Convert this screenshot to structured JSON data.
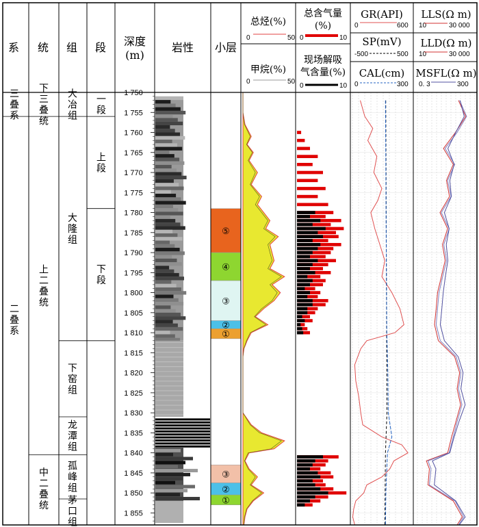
{
  "headers": {
    "system": "系",
    "series": "统",
    "formation": "组",
    "member": "段",
    "depth_line1": "深度",
    "depth_line2": "(m)",
    "lithology": "岩性",
    "sublayer": "小层",
    "total_hc_title": "总烃(%)",
    "total_hc_scale_min": "0",
    "total_hc_scale_max": "50",
    "methane_title": "甲烷(%)",
    "methane_scale_min": "0",
    "methane_scale_max": "50",
    "total_gas_line1": "总含气量",
    "total_gas_line2": "(%)",
    "total_gas_scale_min": "0",
    "total_gas_scale_max": "10",
    "desorb_line1": "现场解吸",
    "desorb_line2": "气含量(%)",
    "desorb_scale_min": "0",
    "desorb_scale_max": "10",
    "gr_title": "GR(API)",
    "gr_scale_min": "0",
    "gr_scale_max": "600",
    "sp_title": "SP(mV)",
    "sp_scale_min": "-500",
    "sp_scale_max": "500",
    "cal_title": "CAL(cm)",
    "cal_scale_min": "0",
    "cal_scale_max": "300",
    "lls_title": "LLS(Ω m)",
    "lls_scale_min": "10",
    "lls_scale_max": "30 000",
    "lld_title": "LLD(Ω m)",
    "lld_scale_min": "10",
    "lld_scale_max": "30 000",
    "msfl_title": "MSFL(Ω m)",
    "msfl_scale_min": "0. 3",
    "msfl_scale_max": "300"
  },
  "colors": {
    "gr": "#e05050",
    "sp": "#000000",
    "cal": "#2060c0",
    "lls": "#d03030",
    "lld": "#8080c0",
    "msfl": "#5050a0",
    "total_hc_fill": "#e8e830",
    "total_hc_line": "#e04040",
    "gas_bar": "#e00000",
    "desorb_bar": "#000000",
    "sub5": "#e8641e",
    "sub4": "#8ed630",
    "sub3": "#dff5f2",
    "sub2": "#4cc0e8",
    "sub1": "#eca030",
    "lower3": "#f2c0a8",
    "lower2": "#4cc0e8",
    "lower1": "#8ed630"
  },
  "stratigraphy": {
    "systems": [
      {
        "label": "三叠系",
        "top": 1750,
        "bottom": 1756
      },
      {
        "label": "二叠系",
        "top": 1756,
        "bottom": 1857.5
      }
    ],
    "series": [
      {
        "label": "下三叠统",
        "top": 1750,
        "bottom": 1756
      },
      {
        "label": "上二叠统",
        "top": 1756,
        "bottom": 1840.5
      },
      {
        "label": "中二叠统",
        "top": 1840.5,
        "bottom": 1857.5
      }
    ],
    "formations": [
      {
        "label": "大冶组",
        "top": 1750,
        "bottom": 1756
      },
      {
        "label": "大隆组",
        "top": 1756,
        "bottom": 1812
      },
      {
        "label": "下窑组",
        "top": 1812,
        "bottom": 1831
      },
      {
        "label": "龙潭组",
        "top": 1831,
        "bottom": 1840.5
      },
      {
        "label": "孤峰组",
        "top": 1840.5,
        "bottom": 1851.5
      },
      {
        "label": "茅口组",
        "top": 1851.5,
        "bottom": 1857.5
      }
    ],
    "members": [
      {
        "label": "一段",
        "top": 1750,
        "bottom": 1756
      },
      {
        "label": "上段",
        "top": 1756,
        "bottom": 1779
      },
      {
        "label": "下段",
        "top": 1779,
        "bottom": 1812
      }
    ],
    "sublayers": [
      {
        "label": "⑤",
        "top": 1779,
        "bottom": 1790,
        "color": "#e8641e"
      },
      {
        "label": "④",
        "top": 1790,
        "bottom": 1797,
        "color": "#8ed630"
      },
      {
        "label": "③",
        "top": 1797,
        "bottom": 1807,
        "color": "#dff5f2"
      },
      {
        "label": "②",
        "top": 1807,
        "bottom": 1809,
        "color": "#4cc0e8"
      },
      {
        "label": "①",
        "top": 1809,
        "bottom": 1811.5,
        "color": "#eca030"
      },
      {
        "label": "③",
        "top": 1843,
        "bottom": 1847.5,
        "color": "#f2c0a8"
      },
      {
        "label": "②",
        "top": 1847.5,
        "bottom": 1850.5,
        "color": "#4cc0e8"
      },
      {
        "label": "①",
        "top": 1850.5,
        "bottom": 1853,
        "color": "#8ed630"
      }
    ]
  },
  "chart_data": {
    "type": "line",
    "depth_range": [
      1750,
      1858
    ],
    "depth_ticks": [
      1750,
      1755,
      1760,
      1765,
      1770,
      1775,
      1780,
      1785,
      1790,
      1795,
      1800,
      1805,
      1810,
      1815,
      1820,
      1825,
      1830,
      1835,
      1840,
      1845,
      1850,
      1855
    ],
    "total_hydrocarbon": {
      "depth": [
        1750,
        1755,
        1758,
        1761,
        1763,
        1765,
        1767,
        1770,
        1773,
        1776,
        1778,
        1780,
        1782,
        1784,
        1786,
        1788,
        1790,
        1792,
        1794,
        1796,
        1798,
        1800,
        1802,
        1804,
        1806,
        1808,
        1810,
        1812,
        1814,
        1816,
        1820,
        1825,
        1830,
        1833,
        1835,
        1837,
        1839,
        1840,
        1842,
        1844,
        1846,
        1848,
        1850,
        1852,
        1854,
        1856,
        1858
      ],
      "values": [
        0,
        0,
        2,
        8,
        4,
        10,
        6,
        14,
        8,
        18,
        14,
        20,
        26,
        22,
        34,
        26,
        28,
        30,
        26,
        40,
        28,
        36,
        30,
        20,
        12,
        24,
        8,
        4,
        1,
        0,
        0,
        0,
        0,
        8,
        18,
        40,
        30,
        6,
        2,
        6,
        14,
        8,
        20,
        10,
        4,
        2,
        1
      ]
    },
    "methane": {
      "depth": [
        1750,
        1755,
        1758,
        1761,
        1763,
        1765,
        1767,
        1770,
        1773,
        1776,
        1778,
        1780,
        1782,
        1784,
        1786,
        1788,
        1790,
        1792,
        1794,
        1796,
        1798,
        1800,
        1802,
        1804,
        1806,
        1808,
        1810,
        1812,
        1814,
        1816,
        1820,
        1825,
        1830,
        1833,
        1835,
        1837,
        1839,
        1840,
        1842,
        1844,
        1846,
        1848,
        1850,
        1852,
        1854,
        1856,
        1858
      ],
      "values": [
        0,
        0,
        1.5,
        7,
        3.5,
        9,
        5,
        12,
        7,
        16,
        12,
        18,
        24,
        20,
        31,
        24,
        26,
        28,
        24,
        37,
        26,
        33,
        28,
        18,
        11,
        22,
        7,
        3.5,
        0.8,
        0,
        0,
        0,
        0,
        7,
        16,
        37,
        27,
        5,
        1.5,
        5,
        12,
        7,
        18,
        9,
        3.5,
        1.5,
        0.8
      ]
    },
    "total_gas_content": {
      "depth": [
        1760,
        1762,
        1764,
        1766,
        1768,
        1770,
        1772,
        1774,
        1776,
        1778,
        1780,
        1781,
        1782,
        1783,
        1784,
        1785,
        1786,
        1787,
        1788,
        1789,
        1790,
        1791,
        1792,
        1793,
        1794,
        1795,
        1796,
        1797,
        1798,
        1799,
        1800,
        1801,
        1802,
        1803,
        1804,
        1805,
        1806,
        1807,
        1808,
        1809,
        1810,
        1841,
        1842,
        1843,
        1844,
        1845,
        1846,
        1847,
        1848,
        1849,
        1850,
        1851,
        1852,
        1853
      ],
      "values": [
        0.8,
        1.5,
        2.5,
        4,
        3,
        5,
        4,
        5.5,
        4,
        6,
        7,
        5.5,
        8.5,
        6.5,
        9,
        7.5,
        8,
        6,
        8.5,
        7,
        6.5,
        5.5,
        7.5,
        6,
        5,
        6.5,
        4.5,
        5.5,
        5,
        3.5,
        4.5,
        4,
        6,
        5.5,
        4,
        3.5,
        2.5,
        3,
        1.5,
        2,
        2.5,
        8,
        6,
        5.5,
        4.5,
        6.5,
        7,
        5,
        5.5,
        7,
        9.5,
        6,
        4.5,
        3
      ]
    },
    "desorbed_gas_content": {
      "depth": [
        1780,
        1781,
        1782,
        1783,
        1784,
        1785,
        1786,
        1787,
        1788,
        1789,
        1790,
        1791,
        1792,
        1793,
        1794,
        1795,
        1796,
        1797,
        1798,
        1799,
        1800,
        1801,
        1802,
        1803,
        1804,
        1805,
        1806,
        1807,
        1808,
        1809,
        1810,
        1841,
        1842,
        1843,
        1844,
        1845,
        1846,
        1847,
        1848,
        1849,
        1850,
        1851,
        1852,
        1853
      ],
      "values": [
        3.5,
        2.5,
        4.5,
        3,
        5.5,
        4,
        5,
        3,
        4.5,
        4,
        3,
        2.5,
        4,
        3,
        2.5,
        3.5,
        2,
        3,
        2.5,
        1.5,
        2.5,
        2,
        3,
        3,
        2,
        2,
        1,
        1.5,
        0.7,
        1,
        1.2,
        5,
        3.5,
        3,
        2.5,
        4,
        4.5,
        3,
        3.5,
        4.5,
        6,
        3.5,
        2.5,
        1.5
      ]
    },
    "gr": {
      "depth": [
        1752,
        1756,
        1759,
        1762,
        1766,
        1770,
        1774,
        1777,
        1780,
        1784,
        1788,
        1792,
        1796,
        1800,
        1804,
        1808,
        1810,
        1812,
        1814,
        1818,
        1822,
        1826,
        1830,
        1833,
        1836,
        1838,
        1840,
        1842,
        1844,
        1846,
        1848,
        1850,
        1852,
        1854,
        1856,
        1858
      ],
      "values": [
        85,
        130,
        210,
        160,
        250,
        220,
        300,
        260,
        190,
        230,
        280,
        330,
        300,
        400,
        480,
        520,
        430,
        150,
        90,
        30,
        40,
        70,
        90,
        110,
        300,
        500,
        560,
        420,
        380,
        300,
        150,
        120,
        40,
        20,
        10,
        30
      ]
    },
    "sp": {
      "depth": [
        1752,
        1770,
        1790,
        1810,
        1830,
        1840,
        1850,
        1858
      ],
      "values": [
        65,
        70,
        75,
        80,
        85,
        60,
        55,
        50
      ]
    },
    "cal": {
      "depth": [
        1752,
        1770,
        1790,
        1810,
        1820,
        1830,
        1836,
        1840,
        1850,
        1858
      ],
      "values": [
        168,
        170,
        172,
        175,
        180,
        182,
        200,
        178,
        170,
        168
      ]
    },
    "lls": {
      "depth": [
        1752,
        1756,
        1760,
        1764,
        1768,
        1772,
        1776,
        1780,
        1784,
        1788,
        1792,
        1796,
        1800,
        1804,
        1808,
        1812,
        1816,
        1820,
        1824,
        1828,
        1832,
        1836,
        1840,
        1842,
        1844,
        1848,
        1852,
        1856,
        1858
      ],
      "values": [
        3000,
        8000,
        2000,
        400,
        1500,
        600,
        900,
        250,
        700,
        350,
        500,
        300,
        180,
        150,
        120,
        200,
        1800,
        3500,
        2500,
        4000,
        2200,
        1200,
        700,
        40,
        60,
        50,
        1500,
        5000,
        2500
      ]
    },
    "lld": {
      "depth": [
        1752,
        1756,
        1760,
        1764,
        1768,
        1772,
        1776,
        1780,
        1784,
        1788,
        1792,
        1796,
        1800,
        1804,
        1808,
        1812,
        1816,
        1820,
        1824,
        1828,
        1832,
        1836,
        1840,
        1842,
        1844,
        1848,
        1852,
        1856,
        1858
      ],
      "values": [
        3500,
        9000,
        2500,
        500,
        1800,
        700,
        1100,
        300,
        850,
        420,
        600,
        360,
        220,
        180,
        150,
        260,
        2200,
        4200,
        3000,
        4800,
        2600,
        1500,
        850,
        50,
        75,
        60,
        1900,
        6000,
        3000
      ]
    },
    "msfl": {
      "depth": [
        1752,
        1756,
        1760,
        1764,
        1768,
        1772,
        1776,
        1780,
        1784,
        1788,
        1792,
        1796,
        1800,
        1804,
        1808,
        1812,
        1816,
        1820,
        1824,
        1828,
        1832,
        1836,
        1840,
        1842,
        1844,
        1848,
        1852,
        1856,
        1858
      ],
      "values": [
        50,
        80,
        30,
        12,
        25,
        15,
        18,
        8,
        14,
        10,
        12,
        9,
        7,
        6,
        5,
        8,
        40,
        70,
        55,
        90,
        45,
        25,
        15,
        2,
        3,
        2.5,
        30,
        90,
        45
      ]
    }
  },
  "lithology_note": "",
  "footer": ""
}
